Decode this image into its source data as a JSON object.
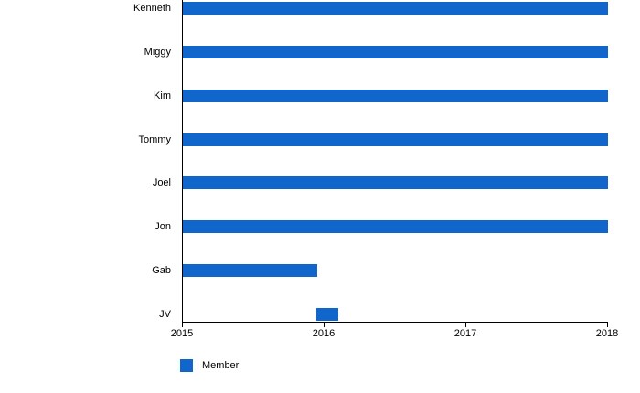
{
  "chart_data": {
    "type": "bar",
    "orientation": "horizontal",
    "title": "",
    "xlabel": "",
    "ylabel": "",
    "grid": false,
    "categories": [
      "Kenneth",
      "Miggy",
      "Kim",
      "Tommy",
      "Joel",
      "Jon",
      "Gab",
      "JV"
    ],
    "series": [
      {
        "name": "Member",
        "color": "#1066CA",
        "ranges": [
          {
            "label": "Kenneth",
            "start": 2015,
            "end": 2018
          },
          {
            "label": "Miggy",
            "start": 2015,
            "end": 2018
          },
          {
            "label": "Kim",
            "start": 2015,
            "end": 2018
          },
          {
            "label": "Tommy",
            "start": 2015,
            "end": 2018
          },
          {
            "label": "Joel",
            "start": 2015,
            "end": 2018
          },
          {
            "label": "Jon",
            "start": 2015,
            "end": 2018
          },
          {
            "label": "Gab",
            "start": 2015,
            "end": 2015.95
          },
          {
            "label": "JV",
            "start": 2015.94,
            "end": 2016.1
          }
        ]
      }
    ],
    "xlim": [
      2015,
      2018
    ],
    "x_ticks": [
      "2015",
      "2016",
      "2017",
      "2018"
    ],
    "legend": {
      "position": "bottom-left",
      "entries": [
        {
          "label": "Member",
          "color": "#1066CA"
        }
      ]
    },
    "axis_color": "#000000",
    "text_color": "#000000"
  }
}
